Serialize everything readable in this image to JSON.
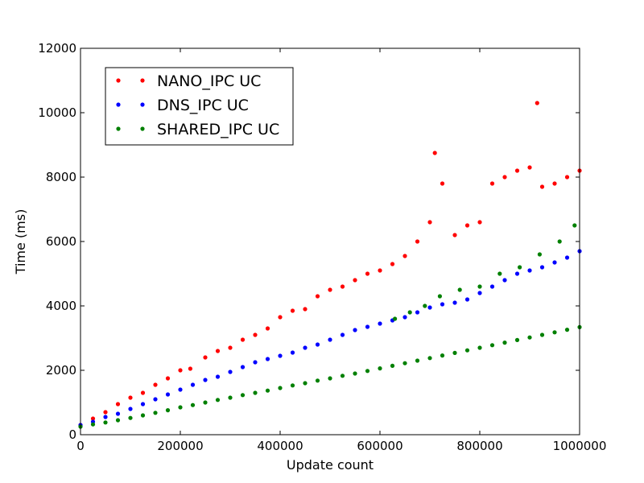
{
  "chart_data": {
    "type": "scatter",
    "title": "",
    "xlabel": "Update count",
    "ylabel": "Time (ms)",
    "xlim": [
      0,
      1000000
    ],
    "ylim": [
      0,
      12000
    ],
    "xticks": [
      0,
      200000,
      400000,
      600000,
      800000,
      1000000
    ],
    "xtick_labels": [
      "0",
      "200000",
      "400000",
      "600000",
      "800000",
      "1000000"
    ],
    "yticks": [
      0,
      2000,
      4000,
      6000,
      8000,
      10000,
      12000
    ],
    "ytick_labels": [
      "0",
      "2000",
      "4000",
      "6000",
      "8000",
      "10000",
      "12000"
    ],
    "grid": false,
    "legend_position": "upper-left",
    "series": [
      {
        "name": "NANO_IPC UC",
        "color": "#ff0000",
        "x": [
          0,
          25000,
          50000,
          75000,
          100000,
          125000,
          150000,
          175000,
          200000,
          220000,
          250000,
          275000,
          300000,
          325000,
          350000,
          375000,
          400000,
          425000,
          450000,
          475000,
          500000,
          525000,
          550000,
          575000,
          600000,
          625000,
          650000,
          675000,
          700000,
          710000,
          725000,
          750000,
          775000,
          800000,
          825000,
          850000,
          875000,
          900000,
          915000,
          925000,
          950000,
          975000,
          1000000
        ],
        "y": [
          300,
          500,
          700,
          950,
          1150,
          1300,
          1550,
          1750,
          2000,
          2050,
          2400,
          2600,
          2700,
          2950,
          3100,
          3300,
          3650,
          3850,
          3900,
          4300,
          4500,
          4600,
          4800,
          5000,
          5100,
          5300,
          5550,
          6000,
          6600,
          8750,
          7800,
          6200,
          6500,
          6600,
          7800,
          8000,
          8200,
          8300,
          10300,
          7700,
          7800,
          8000,
          8200
        ]
      },
      {
        "name": "DNS_IPC UC",
        "color": "#0000ff",
        "x": [
          0,
          25000,
          50000,
          75000,
          100000,
          125000,
          150000,
          175000,
          200000,
          225000,
          250000,
          275000,
          300000,
          325000,
          350000,
          375000,
          400000,
          425000,
          450000,
          475000,
          500000,
          525000,
          550000,
          575000,
          600000,
          625000,
          650000,
          675000,
          700000,
          725000,
          750000,
          775000,
          800000,
          825000,
          850000,
          875000,
          900000,
          925000,
          950000,
          975000,
          1000000
        ],
        "y": [
          300,
          400,
          550,
          650,
          800,
          950,
          1100,
          1250,
          1400,
          1550,
          1700,
          1800,
          1950,
          2100,
          2250,
          2350,
          2450,
          2550,
          2700,
          2800,
          2950,
          3100,
          3250,
          3350,
          3450,
          3550,
          3650,
          3800,
          3950,
          4050,
          4100,
          4200,
          4400,
          4600,
          4800,
          5000,
          5100,
          5200,
          5350,
          5500,
          5700
        ]
      },
      {
        "name": "SHARED_IPC UC",
        "color": "#008000",
        "x": [
          0,
          25000,
          50000,
          75000,
          100000,
          125000,
          150000,
          175000,
          200000,
          225000,
          250000,
          275000,
          300000,
          325000,
          350000,
          375000,
          400000,
          425000,
          450000,
          475000,
          500000,
          525000,
          550000,
          575000,
          600000,
          625000,
          650000,
          675000,
          700000,
          725000,
          750000,
          775000,
          800000,
          825000,
          850000,
          875000,
          900000,
          925000,
          950000,
          975000,
          1000000,
          630000,
          660000,
          690000,
          720000,
          760000,
          800000,
          840000,
          880000,
          920000,
          960000,
          990000
        ],
        "y": [
          250,
          320,
          380,
          450,
          520,
          600,
          680,
          760,
          850,
          920,
          1000,
          1080,
          1150,
          1230,
          1300,
          1370,
          1450,
          1530,
          1600,
          1680,
          1750,
          1830,
          1900,
          1980,
          2060,
          2140,
          2220,
          2300,
          2380,
          2460,
          2540,
          2620,
          2700,
          2780,
          2860,
          2940,
          3020,
          3100,
          3180,
          3260,
          3340,
          3600,
          3800,
          4000,
          4300,
          4500,
          4600,
          5000,
          5200,
          5600,
          6000,
          6500
        ]
      }
    ]
  }
}
